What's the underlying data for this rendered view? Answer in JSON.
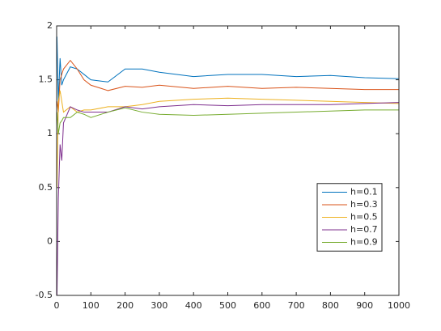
{
  "chart_data": {
    "type": "line",
    "x": [
      1,
      5,
      10,
      15,
      20,
      40,
      60,
      80,
      100,
      150,
      200,
      250,
      300,
      400,
      500,
      600,
      700,
      800,
      900,
      1000
    ],
    "series": [
      {
        "name": "h=0.1",
        "color": "#0072bd",
        "values": [
          1.9,
          1.3,
          1.7,
          1.45,
          1.5,
          1.62,
          1.6,
          1.55,
          1.5,
          1.48,
          1.6,
          1.6,
          1.57,
          1.53,
          1.55,
          1.55,
          1.53,
          1.54,
          1.52,
          1.51
        ]
      },
      {
        "name": "h=0.3",
        "color": "#d95319",
        "values": [
          1.3,
          1.2,
          1.5,
          1.55,
          1.6,
          1.68,
          1.6,
          1.5,
          1.45,
          1.4,
          1.44,
          1.43,
          1.45,
          1.42,
          1.44,
          1.42,
          1.43,
          1.42,
          1.41,
          1.41
        ]
      },
      {
        "name": "h=0.5",
        "color": "#edb120",
        "values": [
          0.5,
          1.3,
          1.4,
          1.3,
          1.2,
          1.25,
          1.2,
          1.22,
          1.22,
          1.25,
          1.25,
          1.27,
          1.3,
          1.32,
          1.33,
          1.32,
          1.31,
          1.3,
          1.29,
          1.28
        ]
      },
      {
        "name": "h=0.7",
        "color": "#7e2f8e",
        "values": [
          -0.5,
          0.4,
          0.9,
          0.75,
          1.1,
          1.25,
          1.22,
          1.2,
          1.2,
          1.2,
          1.25,
          1.23,
          1.25,
          1.27,
          1.26,
          1.27,
          1.27,
          1.27,
          1.28,
          1.29
        ]
      },
      {
        "name": "h=0.9",
        "color": "#77ac30",
        "values": [
          1.2,
          1.0,
          1.1,
          1.12,
          1.15,
          1.15,
          1.2,
          1.18,
          1.15,
          1.2,
          1.24,
          1.2,
          1.18,
          1.17,
          1.18,
          1.19,
          1.2,
          1.21,
          1.22,
          1.22
        ]
      }
    ],
    "xlim": [
      0,
      1000
    ],
    "xticks": [
      0,
      100,
      200,
      300,
      400,
      500,
      600,
      700,
      800,
      900,
      1000
    ],
    "ylim": [
      -0.5,
      2
    ],
    "yticks": [
      -0.5,
      0,
      0.5,
      1,
      1.5,
      2
    ],
    "legend": "east"
  }
}
